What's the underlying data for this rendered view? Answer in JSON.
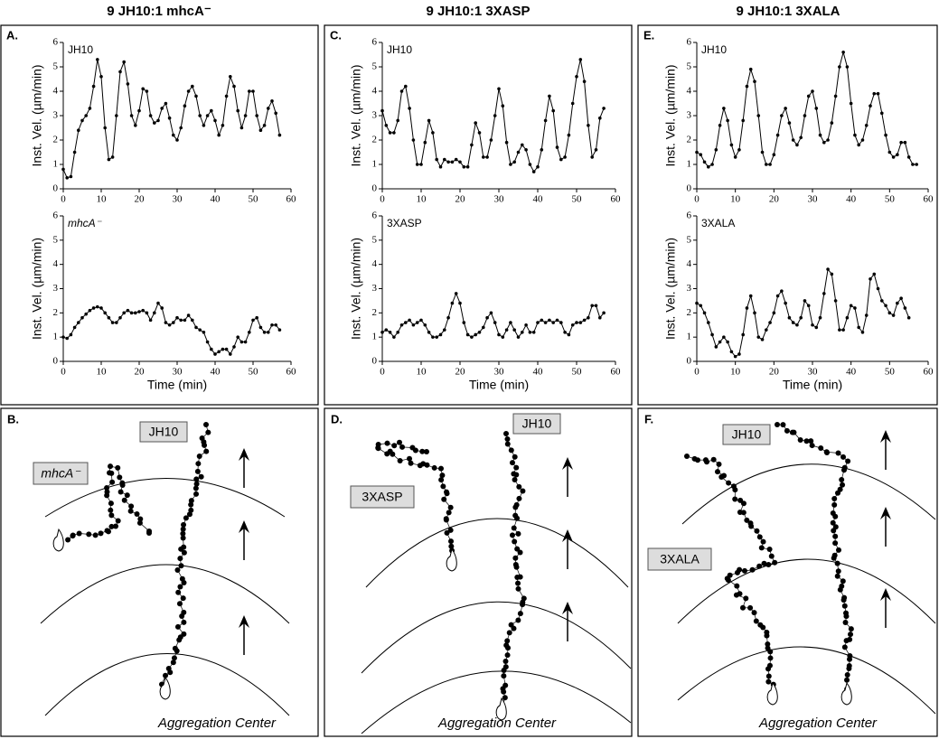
{
  "columns": [
    "9 JH10:1 mhcA⁻",
    "9 JH10:1 3XASP",
    "9 JH10:1 3XALA"
  ],
  "chart_data": [
    {
      "type": "line",
      "panel": "A.",
      "label": "JH10",
      "ylabel": "Inst. Vel. (µm/min)",
      "color": "#000000",
      "x": [
        0,
        1,
        2,
        3,
        4,
        5,
        6,
        7,
        8,
        9,
        10,
        11,
        12,
        13,
        14,
        15,
        16,
        17,
        18,
        19,
        20,
        21,
        22,
        23,
        24,
        25,
        26,
        27,
        28,
        29,
        30,
        31,
        32,
        33,
        34,
        35,
        36,
        37,
        38,
        39,
        40,
        41,
        42,
        43,
        44,
        45,
        46,
        47,
        48,
        49,
        50,
        51,
        52,
        53,
        54,
        55,
        56,
        57
      ],
      "values": [
        0.8,
        0.45,
        0.5,
        1.5,
        2.4,
        2.8,
        3.0,
        3.3,
        4.2,
        5.3,
        4.6,
        2.5,
        1.2,
        1.3,
        3.0,
        4.8,
        5.2,
        4.3,
        3.0,
        2.6,
        3.2,
        4.1,
        4.0,
        3.0,
        2.7,
        2.8,
        3.3,
        3.5,
        2.9,
        2.2,
        2.0,
        2.5,
        3.4,
        4.0,
        4.2,
        3.8,
        3.0,
        2.6,
        3.0,
        3.2,
        2.8,
        2.2,
        2.6,
        3.8,
        4.6,
        4.2,
        3.2,
        2.5,
        3.0,
        4.0,
        4.0,
        3.0,
        2.4,
        2.6,
        3.3,
        3.6,
        3.1,
        2.2
      ],
      "xlim": [
        0,
        60
      ],
      "xticks": [
        0,
        10,
        20,
        30,
        40,
        50,
        60
      ],
      "ylim": [
        0,
        6
      ],
      "yticks": [
        0,
        1,
        2,
        3,
        4,
        5,
        6
      ]
    },
    {
      "type": "line",
      "label": "mhcA⁻",
      "ylabel": "Inst. Vel. (µm/min)",
      "xlabel": "Time (min)",
      "color": "#000000",
      "x": [
        0,
        1,
        2,
        3,
        4,
        5,
        6,
        7,
        8,
        9,
        10,
        11,
        12,
        13,
        14,
        15,
        16,
        17,
        18,
        19,
        20,
        21,
        22,
        23,
        24,
        25,
        26,
        27,
        28,
        29,
        30,
        31,
        32,
        33,
        34,
        35,
        36,
        37,
        38,
        39,
        40,
        41,
        42,
        43,
        44,
        45,
        46,
        47,
        48,
        49,
        50,
        51,
        52,
        53,
        54,
        55,
        56,
        57
      ],
      "values": [
        1.0,
        0.95,
        1.1,
        1.4,
        1.6,
        1.8,
        1.95,
        2.1,
        2.2,
        2.25,
        2.2,
        2.0,
        1.8,
        1.6,
        1.6,
        1.8,
        2.0,
        2.1,
        2.0,
        2.0,
        2.05,
        2.1,
        2.0,
        1.7,
        2.0,
        2.4,
        2.2,
        1.6,
        1.5,
        1.6,
        1.8,
        1.7,
        1.7,
        1.9,
        1.7,
        1.4,
        1.3,
        1.2,
        0.8,
        0.5,
        0.3,
        0.4,
        0.5,
        0.5,
        0.3,
        0.6,
        1.0,
        0.8,
        0.8,
        1.2,
        1.7,
        1.8,
        1.4,
        1.2,
        1.2,
        1.5,
        1.5,
        1.3
      ],
      "xlim": [
        0,
        60
      ],
      "xticks": [
        0,
        10,
        20,
        30,
        40,
        50,
        60
      ],
      "ylim": [
        0,
        6
      ],
      "yticks": [
        0,
        1,
        2,
        3,
        4,
        5,
        6
      ]
    },
    {
      "type": "line",
      "panel": "C.",
      "label": "JH10",
      "ylabel": "Inst. Vel. (µm/min)",
      "color": "#000000",
      "x": [
        0,
        1,
        2,
        3,
        4,
        5,
        6,
        7,
        8,
        9,
        10,
        11,
        12,
        13,
        14,
        15,
        16,
        17,
        18,
        19,
        20,
        21,
        22,
        23,
        24,
        25,
        26,
        27,
        28,
        29,
        30,
        31,
        32,
        33,
        34,
        35,
        36,
        37,
        38,
        39,
        40,
        41,
        42,
        43,
        44,
        45,
        46,
        47,
        48,
        49,
        50,
        51,
        52,
        53,
        54,
        55,
        56,
        57
      ],
      "values": [
        3.2,
        2.6,
        2.3,
        2.3,
        2.8,
        4.0,
        4.2,
        3.3,
        2.0,
        1.0,
        1.0,
        1.9,
        2.8,
        2.3,
        1.2,
        0.9,
        1.2,
        1.1,
        1.1,
        1.2,
        1.1,
        0.9,
        0.9,
        1.8,
        2.7,
        2.3,
        1.3,
        1.3,
        2.0,
        3.0,
        4.1,
        3.4,
        1.9,
        1.0,
        1.1,
        1.5,
        1.8,
        1.6,
        1.0,
        0.7,
        0.9,
        1.6,
        2.8,
        3.8,
        3.2,
        1.7,
        1.2,
        1.3,
        2.2,
        3.5,
        4.6,
        5.3,
        4.4,
        2.6,
        1.3,
        1.6,
        2.9,
        3.3
      ],
      "xlim": [
        0,
        60
      ],
      "xticks": [
        0,
        10,
        20,
        30,
        40,
        50,
        60
      ],
      "ylim": [
        0,
        6
      ],
      "yticks": [
        0,
        1,
        2,
        3,
        4,
        5,
        6
      ]
    },
    {
      "type": "line",
      "label": "3XASP",
      "ylabel": "Inst. Vel. (µm/min)",
      "xlabel": "Time (min)",
      "color": "#000000",
      "x": [
        0,
        1,
        2,
        3,
        4,
        5,
        6,
        7,
        8,
        9,
        10,
        11,
        12,
        13,
        14,
        15,
        16,
        17,
        18,
        19,
        20,
        21,
        22,
        23,
        24,
        25,
        26,
        27,
        28,
        29,
        30,
        31,
        32,
        33,
        34,
        35,
        36,
        37,
        38,
        39,
        40,
        41,
        42,
        43,
        44,
        45,
        46,
        47,
        48,
        49,
        50,
        51,
        52,
        53,
        54,
        55,
        56,
        57
      ],
      "values": [
        1.2,
        1.3,
        1.2,
        1.0,
        1.2,
        1.5,
        1.6,
        1.7,
        1.5,
        1.6,
        1.7,
        1.5,
        1.2,
        1.0,
        1.0,
        1.1,
        1.3,
        1.8,
        2.4,
        2.8,
        2.4,
        1.6,
        1.1,
        1.0,
        1.1,
        1.2,
        1.4,
        1.8,
        2.0,
        1.6,
        1.1,
        1.0,
        1.3,
        1.6,
        1.3,
        1.0,
        1.2,
        1.5,
        1.2,
        1.2,
        1.6,
        1.7,
        1.6,
        1.7,
        1.6,
        1.7,
        1.6,
        1.2,
        1.1,
        1.5,
        1.6,
        1.6,
        1.7,
        1.8,
        2.3,
        2.3,
        1.8,
        2.0
      ],
      "xlim": [
        0,
        60
      ],
      "xticks": [
        0,
        10,
        20,
        30,
        40,
        50,
        60
      ],
      "ylim": [
        0,
        6
      ],
      "yticks": [
        0,
        1,
        2,
        3,
        4,
        5,
        6
      ]
    },
    {
      "type": "line",
      "panel": "E.",
      "label": "JH10",
      "ylabel": "Inst. Vel. (µm/min)",
      "color": "#000000",
      "x": [
        0,
        1,
        2,
        3,
        4,
        5,
        6,
        7,
        8,
        9,
        10,
        11,
        12,
        13,
        14,
        15,
        16,
        17,
        18,
        19,
        20,
        21,
        22,
        23,
        24,
        25,
        26,
        27,
        28,
        29,
        30,
        31,
        32,
        33,
        34,
        35,
        36,
        37,
        38,
        39,
        40,
        41,
        42,
        43,
        44,
        45,
        46,
        47,
        48,
        49,
        50,
        51,
        52,
        53,
        54,
        55,
        56,
        57
      ],
      "values": [
        1.5,
        1.4,
        1.1,
        0.9,
        1.0,
        1.6,
        2.6,
        3.3,
        2.8,
        1.8,
        1.3,
        1.6,
        2.8,
        4.2,
        4.9,
        4.4,
        3.0,
        1.5,
        1.0,
        1.0,
        1.4,
        2.2,
        3.0,
        3.3,
        2.7,
        2.0,
        1.8,
        2.1,
        3.0,
        3.8,
        4.0,
        3.3,
        2.2,
        1.9,
        2.0,
        2.7,
        3.8,
        5.0,
        5.6,
        5.0,
        3.5,
        2.2,
        1.8,
        2.0,
        2.6,
        3.4,
        3.9,
        3.9,
        3.1,
        2.2,
        1.5,
        1.3,
        1.4,
        1.9,
        1.9,
        1.3,
        1.0,
        1.0
      ],
      "xlim": [
        0,
        60
      ],
      "xticks": [
        0,
        10,
        20,
        30,
        40,
        50,
        60
      ],
      "ylim": [
        0,
        6
      ],
      "yticks": [
        0,
        1,
        2,
        3,
        4,
        5,
        6
      ]
    },
    {
      "type": "line",
      "label": "3XALA",
      "ylabel": "Inst. Vel. (µm/min)",
      "xlabel": "Time (min)",
      "color": "#000000",
      "x": [
        0,
        1,
        2,
        3,
        4,
        5,
        6,
        7,
        8,
        9,
        10,
        11,
        12,
        13,
        14,
        15,
        16,
        17,
        18,
        19,
        20,
        21,
        22,
        23,
        24,
        25,
        26,
        27,
        28,
        29,
        30,
        31,
        32,
        33,
        34,
        35,
        36,
        37,
        38,
        39,
        40,
        41,
        42,
        43,
        44,
        45,
        46,
        47,
        48,
        49,
        50,
        51,
        52,
        53,
        54,
        55
      ],
      "values": [
        2.4,
        2.3,
        2.0,
        1.6,
        1.1,
        0.6,
        0.8,
        1.0,
        0.8,
        0.4,
        0.2,
        0.3,
        1.1,
        2.2,
        2.7,
        2.0,
        1.0,
        0.9,
        1.3,
        1.6,
        2.0,
        2.7,
        2.9,
        2.4,
        1.8,
        1.6,
        1.5,
        1.8,
        2.5,
        2.3,
        1.5,
        1.4,
        1.8,
        2.8,
        3.8,
        3.6,
        2.5,
        1.3,
        1.3,
        1.8,
        2.3,
        2.2,
        1.4,
        1.2,
        1.9,
        3.4,
        3.6,
        3.0,
        2.5,
        2.3,
        2.0,
        1.9,
        2.4,
        2.6,
        2.2,
        1.8
      ],
      "xlim": [
        0,
        60
      ],
      "xticks": [
        0,
        10,
        20,
        30,
        40,
        50,
        60
      ],
      "ylim": [
        0,
        6
      ],
      "yticks": [
        0,
        1,
        2,
        3,
        4,
        5,
        6
      ]
    }
  ],
  "diagrams": [
    {
      "panel": "B.",
      "labels": [
        "JH10",
        "mhcA⁻"
      ],
      "caption": "Aggregation Center"
    },
    {
      "panel": "D.",
      "labels": [
        "JH10",
        "3XASP"
      ],
      "caption": "Aggregation Center"
    },
    {
      "panel": "F.",
      "labels": [
        "JH10",
        "3XALA"
      ],
      "caption": "Aggregation Center"
    }
  ]
}
